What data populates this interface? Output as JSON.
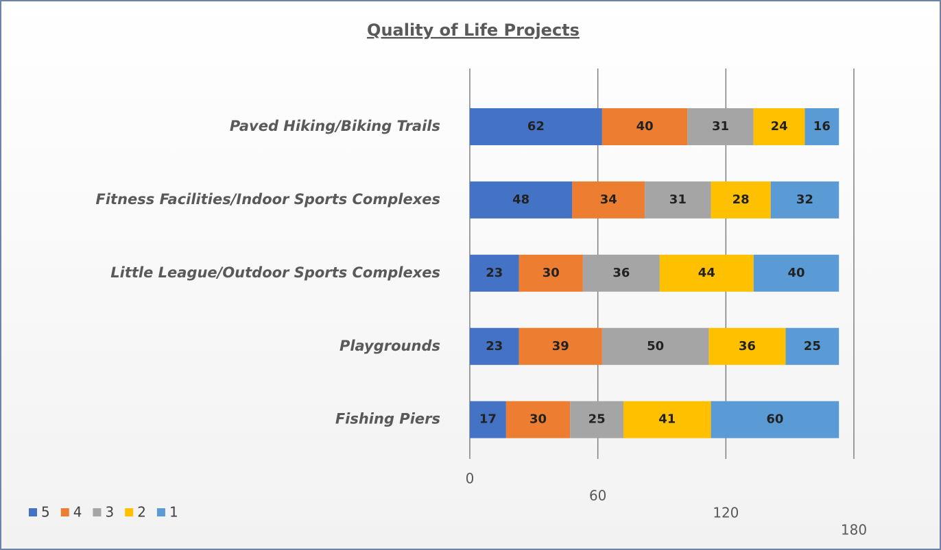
{
  "chart_data": {
    "type": "stacked-bar-horizontal",
    "title": "Quality of Life Projects",
    "categories": [
      "Paved Hiking/Biking Trails",
      "Fitness Facilities/Indoor Sports Complexes",
      "Little League/Outdoor Sports Complexes",
      "Playgrounds",
      "Fishing Piers"
    ],
    "series": [
      {
        "name": "5",
        "color": "#4472c4",
        "values": [
          62,
          48,
          23,
          23,
          17
        ]
      },
      {
        "name": "4",
        "color": "#ed7d31",
        "values": [
          40,
          34,
          30,
          39,
          30
        ]
      },
      {
        "name": "3",
        "color": "#a5a5a5",
        "values": [
          31,
          31,
          36,
          50,
          25
        ]
      },
      {
        "name": "2",
        "color": "#ffc000",
        "values": [
          24,
          28,
          44,
          36,
          41
        ]
      },
      {
        "name": "1",
        "color": "#5b9bd5",
        "values": [
          16,
          32,
          40,
          25,
          60
        ]
      }
    ],
    "xlim": [
      0,
      180
    ],
    "xticks": [
      0,
      60,
      120,
      180
    ],
    "grid": true,
    "legend": "bottom-left"
  }
}
